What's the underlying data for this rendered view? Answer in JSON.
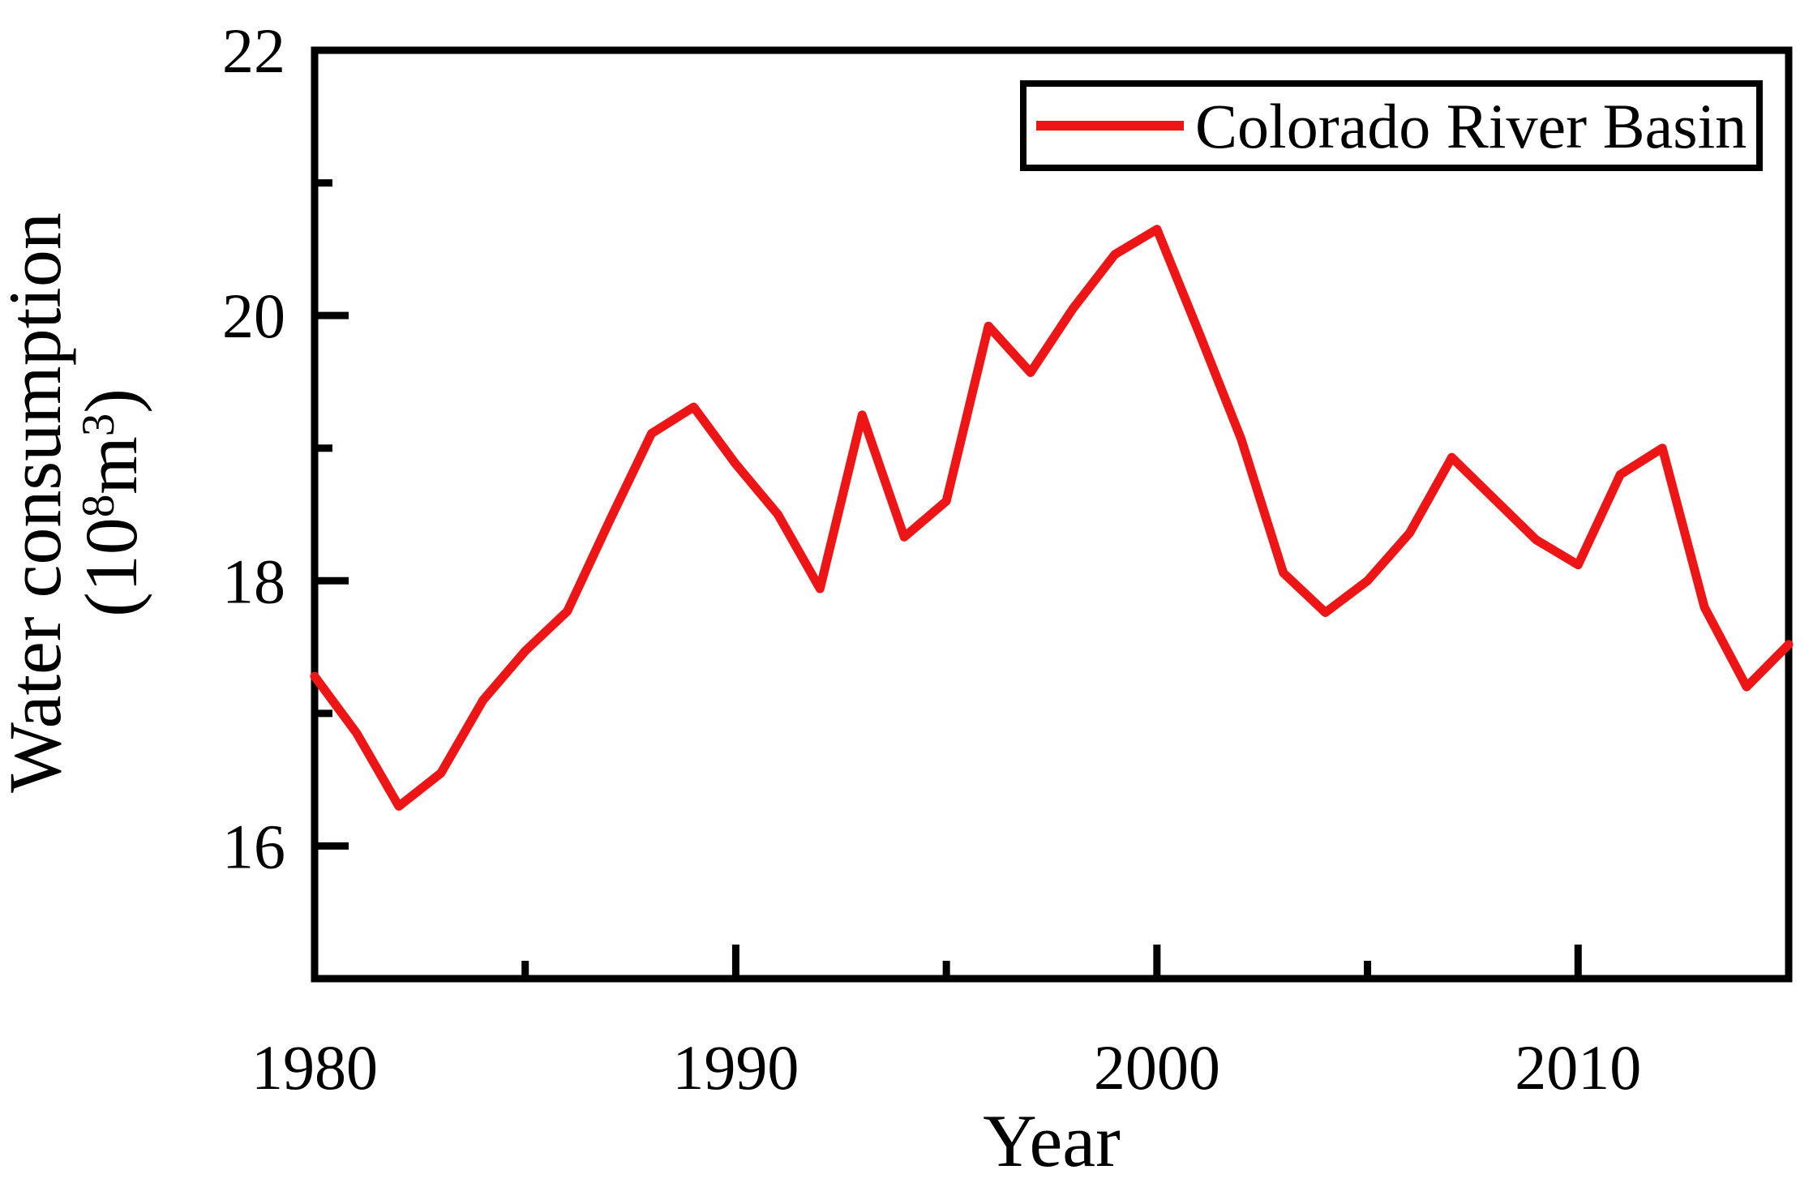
{
  "figure": {
    "background": "#ffffff",
    "frame_color": "#000000"
  },
  "chart_data": {
    "type": "line",
    "title": "",
    "xlabel": "Year",
    "ylabel": "Water consumption (10⁸m³)",
    "ylabel_lines": [
      "Water consumption",
      "(10⁸m³)"
    ],
    "ylabel_line2_parts": [
      {
        "text": "(10",
        "sup": false
      },
      {
        "text": "8",
        "sup": true
      },
      {
        "text": "m",
        "sup": false
      },
      {
        "text": "3",
        "sup": true
      },
      {
        "text": ")",
        "sup": false
      }
    ],
    "xlim": [
      1980,
      2015
    ],
    "ylim": [
      15,
      22
    ],
    "grid": false,
    "x_major_ticks": [
      1980,
      1990,
      2000,
      2010
    ],
    "x_major_tick_labels": [
      "1980",
      "1990",
      "2000",
      "2010"
    ],
    "x_minor_ticks": [
      1985,
      1995,
      2005,
      2015
    ],
    "y_major_ticks": [
      22,
      20,
      18,
      16
    ],
    "y_major_tick_labels": [
      "22",
      "20",
      "18",
      "16"
    ],
    "y_minor_ticks": [
      21,
      19,
      17,
      15
    ],
    "legend": {
      "position": "top-right",
      "entries": [
        {
          "label": "Colorado River Basin",
          "color": "#ed1515"
        }
      ]
    },
    "series": [
      {
        "name": "Colorado River Basin",
        "color": "#ed1515",
        "line_width": 11,
        "x": [
          1980,
          1981,
          1982,
          1983,
          1984,
          1985,
          1986,
          1987,
          1988,
          1989,
          1990,
          1991,
          1992,
          1993,
          1994,
          1995,
          1996,
          1997,
          1998,
          1999,
          2000,
          2001,
          2002,
          2003,
          2004,
          2005,
          2006,
          2007,
          2008,
          2009,
          2010,
          2011,
          2012,
          2013,
          2014,
          2015
        ],
        "values": [
          17.28,
          16.85,
          16.3,
          16.55,
          17.1,
          17.47,
          17.77,
          18.45,
          19.11,
          19.31,
          18.88,
          18.5,
          17.94,
          19.25,
          18.33,
          18.6,
          19.92,
          19.57,
          20.05,
          20.46,
          20.65,
          19.87,
          19.07,
          18.06,
          17.76,
          18.0,
          18.36,
          18.93,
          18.62,
          18.31,
          18.12,
          18.8,
          19.0,
          17.8,
          17.2,
          17.52
        ]
      }
    ]
  }
}
